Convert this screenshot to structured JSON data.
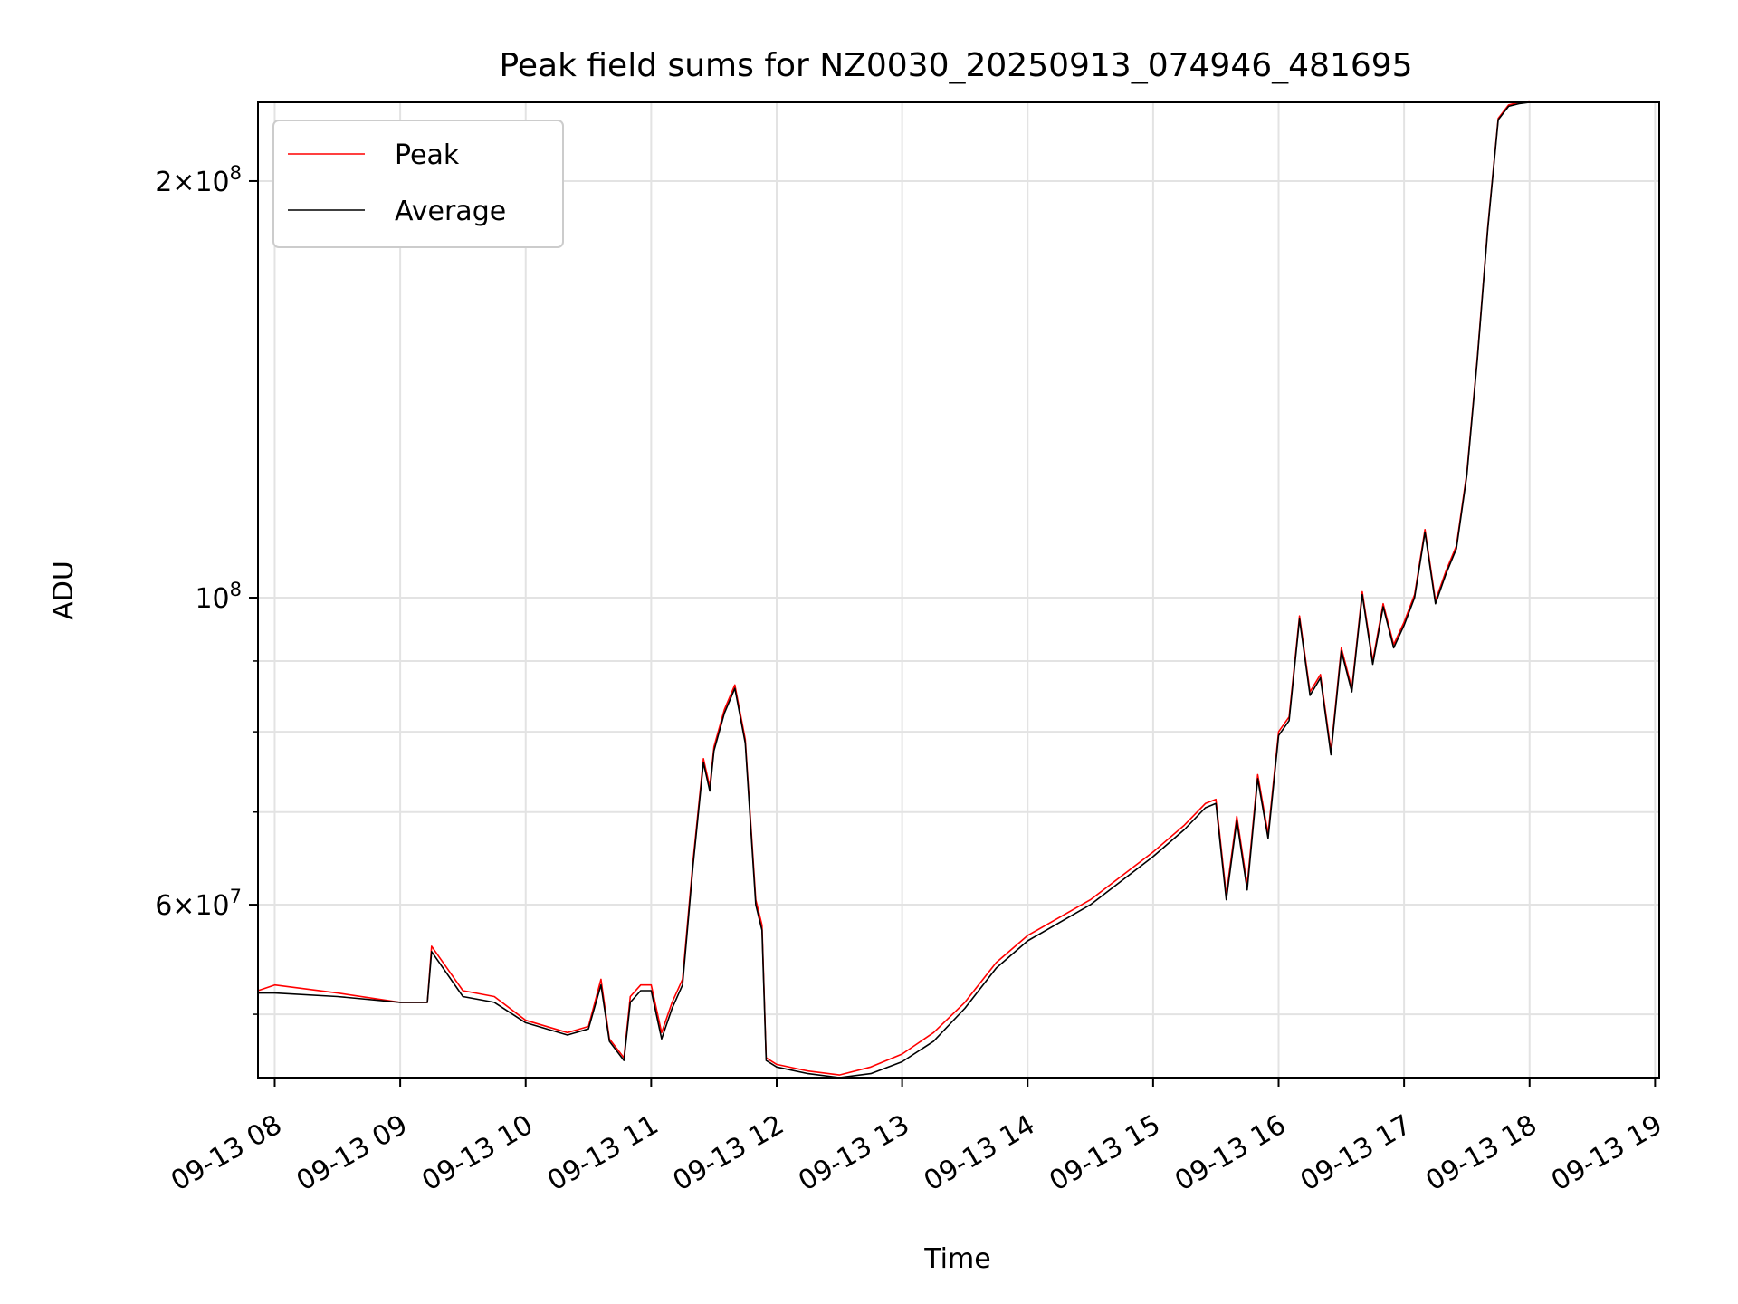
{
  "chart_data": {
    "type": "line",
    "title": "Peak field sums for NZ0030_20250913_074946_481695",
    "xlabel": "Time",
    "ylabel": "ADU",
    "y_scale": "log",
    "ylim": [
      45000000,
      228000000
    ],
    "xlim": [
      "2025-09-13 07:52",
      "2025-09-13 19:02"
    ],
    "grid": true,
    "legend_position": "upper-left",
    "x_ticks": [
      {
        "t": "2025-09-13 08:00",
        "label": "09-13 08"
      },
      {
        "t": "2025-09-13 09:00",
        "label": "09-13 09"
      },
      {
        "t": "2025-09-13 10:00",
        "label": "09-13 10"
      },
      {
        "t": "2025-09-13 11:00",
        "label": "09-13 11"
      },
      {
        "t": "2025-09-13 12:00",
        "label": "09-13 12"
      },
      {
        "t": "2025-09-13 13:00",
        "label": "09-13 13"
      },
      {
        "t": "2025-09-13 14:00",
        "label": "09-13 14"
      },
      {
        "t": "2025-09-13 15:00",
        "label": "09-13 15"
      },
      {
        "t": "2025-09-13 16:00",
        "label": "09-13 16"
      },
      {
        "t": "2025-09-13 17:00",
        "label": "09-13 17"
      },
      {
        "t": "2025-09-13 18:00",
        "label": "09-13 18"
      },
      {
        "t": "2025-09-13 19:00",
        "label": "09-13 19"
      }
    ],
    "y_major_ticks": [
      {
        "value": 60000000,
        "mantissa": "6",
        "exp": "7"
      },
      {
        "value": 100000000,
        "mantissa": "",
        "exp": "8"
      },
      {
        "value": 200000000,
        "mantissa": "2",
        "exp": "8"
      }
    ],
    "y_minor_ticks": [
      50000000,
      70000000,
      80000000,
      90000000
    ],
    "series": [
      {
        "name": "Peak",
        "color": "#ff0000",
        "x": [
          "2025-09-13 07:52",
          "2025-09-13 08:00",
          "2025-09-13 08:30",
          "2025-09-13 09:00",
          "2025-09-13 09:13",
          "2025-09-13 09:15",
          "2025-09-13 09:30",
          "2025-09-13 09:45",
          "2025-09-13 10:00",
          "2025-09-13 10:20",
          "2025-09-13 10:30",
          "2025-09-13 10:36",
          "2025-09-13 10:40",
          "2025-09-13 10:47",
          "2025-09-13 10:50",
          "2025-09-13 10:55",
          "2025-09-13 11:00",
          "2025-09-13 11:05",
          "2025-09-13 11:10",
          "2025-09-13 11:15",
          "2025-09-13 11:20",
          "2025-09-13 11:25",
          "2025-09-13 11:28",
          "2025-09-13 11:30",
          "2025-09-13 11:35",
          "2025-09-13 11:40",
          "2025-09-13 11:45",
          "2025-09-13 11:50",
          "2025-09-13 11:53",
          "2025-09-13 11:55",
          "2025-09-13 12:00",
          "2025-09-13 12:15",
          "2025-09-13 12:30",
          "2025-09-13 12:45",
          "2025-09-13 13:00",
          "2025-09-13 13:15",
          "2025-09-13 13:30",
          "2025-09-13 13:45",
          "2025-09-13 14:00",
          "2025-09-13 14:30",
          "2025-09-13 15:00",
          "2025-09-13 15:15",
          "2025-09-13 15:25",
          "2025-09-13 15:30",
          "2025-09-13 15:35",
          "2025-09-13 15:40",
          "2025-09-13 15:45",
          "2025-09-13 15:50",
          "2025-09-13 15:55",
          "2025-09-13 16:00",
          "2025-09-13 16:05",
          "2025-09-13 16:10",
          "2025-09-13 16:15",
          "2025-09-13 16:20",
          "2025-09-13 16:25",
          "2025-09-13 16:30",
          "2025-09-13 16:35",
          "2025-09-13 16:40",
          "2025-09-13 16:45",
          "2025-09-13 16:50",
          "2025-09-13 16:55",
          "2025-09-13 17:00",
          "2025-09-13 17:05",
          "2025-09-13 17:10",
          "2025-09-13 17:15",
          "2025-09-13 17:20",
          "2025-09-13 17:25",
          "2025-09-13 17:30",
          "2025-09-13 17:35",
          "2025-09-13 17:40",
          "2025-09-13 17:45",
          "2025-09-13 17:50",
          "2025-09-13 17:55",
          "2025-09-13 18:00"
        ],
        "values": [
          52000000,
          52500000,
          51800000,
          51000000,
          51000000,
          56000000,
          52000000,
          51500000,
          49500000,
          48500000,
          49000000,
          53000000,
          48000000,
          46500000,
          51500000,
          52500000,
          52500000,
          48500000,
          51000000,
          53000000,
          64500000,
          76500000,
          73000000,
          78000000,
          83000000,
          86500000,
          79000000,
          60500000,
          58000000,
          46500000,
          46000000,
          45500000,
          45200000,
          45800000,
          46800000,
          48500000,
          51000000,
          54500000,
          57000000,
          60500000,
          65500000,
          68500000,
          71000000,
          71500000,
          61000000,
          69500000,
          62000000,
          74500000,
          67500000,
          80000000,
          82000000,
          97000000,
          85500000,
          88000000,
          77500000,
          92000000,
          86000000,
          101000000,
          90000000,
          99000000,
          92500000,
          96000000,
          100500000,
          112000000,
          99500000,
          104500000,
          109000000,
          123000000,
          149000000,
          185000000,
          222000000,
          227000000,
          228000000,
          228500000
        ]
      },
      {
        "name": "Average",
        "color": "#000000",
        "x": [
          "2025-09-13 07:52",
          "2025-09-13 08:00",
          "2025-09-13 08:30",
          "2025-09-13 09:00",
          "2025-09-13 09:13",
          "2025-09-13 09:15",
          "2025-09-13 09:30",
          "2025-09-13 09:45",
          "2025-09-13 10:00",
          "2025-09-13 10:20",
          "2025-09-13 10:30",
          "2025-09-13 10:36",
          "2025-09-13 10:40",
          "2025-09-13 10:47",
          "2025-09-13 10:50",
          "2025-09-13 10:55",
          "2025-09-13 11:00",
          "2025-09-13 11:05",
          "2025-09-13 11:10",
          "2025-09-13 11:15",
          "2025-09-13 11:20",
          "2025-09-13 11:25",
          "2025-09-13 11:28",
          "2025-09-13 11:30",
          "2025-09-13 11:35",
          "2025-09-13 11:40",
          "2025-09-13 11:45",
          "2025-09-13 11:50",
          "2025-09-13 11:53",
          "2025-09-13 11:55",
          "2025-09-13 12:00",
          "2025-09-13 12:15",
          "2025-09-13 12:30",
          "2025-09-13 12:45",
          "2025-09-13 13:00",
          "2025-09-13 13:15",
          "2025-09-13 13:30",
          "2025-09-13 13:45",
          "2025-09-13 14:00",
          "2025-09-13 14:30",
          "2025-09-13 15:00",
          "2025-09-13 15:15",
          "2025-09-13 15:25",
          "2025-09-13 15:30",
          "2025-09-13 15:35",
          "2025-09-13 15:40",
          "2025-09-13 15:45",
          "2025-09-13 15:50",
          "2025-09-13 15:55",
          "2025-09-13 16:00",
          "2025-09-13 16:05",
          "2025-09-13 16:10",
          "2025-09-13 16:15",
          "2025-09-13 16:20",
          "2025-09-13 16:25",
          "2025-09-13 16:30",
          "2025-09-13 16:35",
          "2025-09-13 16:40",
          "2025-09-13 16:45",
          "2025-09-13 16:50",
          "2025-09-13 16:55",
          "2025-09-13 17:00",
          "2025-09-13 17:05",
          "2025-09-13 17:10",
          "2025-09-13 17:15",
          "2025-09-13 17:20",
          "2025-09-13 17:25",
          "2025-09-13 17:30",
          "2025-09-13 17:35",
          "2025-09-13 17:40",
          "2025-09-13 17:45",
          "2025-09-13 17:50",
          "2025-09-13 17:55",
          "2025-09-13 18:00"
        ],
        "values": [
          51800000,
          51800000,
          51500000,
          51000000,
          51000000,
          55500000,
          51500000,
          51000000,
          49300000,
          48300000,
          48800000,
          52500000,
          47800000,
          46300000,
          51000000,
          52000000,
          52000000,
          48000000,
          50500000,
          52500000,
          64000000,
          76000000,
          72500000,
          77500000,
          82500000,
          86000000,
          78500000,
          60000000,
          57500000,
          46300000,
          45800000,
          45300000,
          45000000,
          45300000,
          46200000,
          47800000,
          50500000,
          54000000,
          56500000,
          60000000,
          65000000,
          68000000,
          70500000,
          71000000,
          60500000,
          69000000,
          61500000,
          74000000,
          67000000,
          79500000,
          81500000,
          96500000,
          85000000,
          87500000,
          77000000,
          91500000,
          85500000,
          100500000,
          89500000,
          98500000,
          92000000,
          95500000,
          100000000,
          111500000,
          99000000,
          104000000,
          108500000,
          122500000,
          148500000,
          184500000,
          221500000,
          226500000,
          227500000,
          228000000
        ]
      }
    ]
  }
}
